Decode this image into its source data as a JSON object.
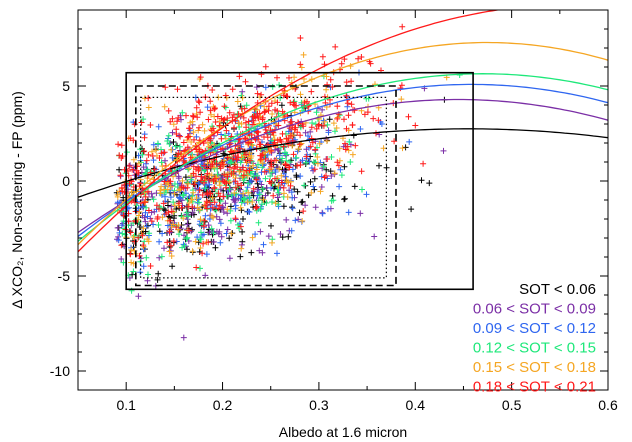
{
  "chart_data": {
    "type": "scatter",
    "title": "",
    "xlabel": "Albedo at 1.6 micron",
    "ylabel": "Δ XCO₂, Non-scattering - FP (ppm)",
    "xlim": [
      0.05,
      0.6
    ],
    "ylim": [
      -11,
      9
    ],
    "xticks": [
      0.1,
      0.2,
      0.3,
      0.4,
      0.5,
      0.6
    ],
    "xtick_labels": [
      "0.1",
      "0.2",
      "0.3",
      "0.4",
      "0.5",
      "0.6"
    ],
    "yticks": [
      -10,
      -5,
      0,
      5
    ],
    "ytick_labels": [
      "-10",
      "-5",
      "0",
      "5"
    ],
    "legend_placement": "bottom-right",
    "series": [
      {
        "name": "SOT < 0.06",
        "color": "#000000",
        "fit": [
          -1.8,
          20,
          -22
        ],
        "cloud": [
          0.205,
          -0.5,
          14,
          1.6
        ]
      },
      {
        "name": "0.06 < SOT < 0.09",
        "color": "#7b2fa6",
        "fit": [
          -4.6,
          40,
          -45
        ],
        "cloud": [
          0.2,
          -0.4,
          15,
          1.8
        ]
      },
      {
        "name": "0.09 < SOT < 0.12",
        "color": "#2f66f0",
        "fit": [
          -5.0,
          44,
          -48
        ],
        "cloud": [
          0.2,
          0.0,
          16,
          1.8
        ]
      },
      {
        "name": "0.12 < SOT < 0.15",
        "color": "#1ee87a",
        "fit": [
          -5.4,
          47,
          -50
        ],
        "cloud": [
          0.2,
          0.2,
          17,
          1.8
        ]
      },
      {
        "name": "0.15 < SOT < 0.18",
        "color": "#f5a623",
        "fit": [
          -6.0,
          56,
          -59
        ],
        "cloud": [
          0.205,
          1.0,
          18,
          1.8
        ]
      },
      {
        "name": "0.18 < SOT < 0.21",
        "color": "#ff1a1a",
        "fit": [
          -6.4,
          56,
          -50
        ],
        "cloud": [
          0.21,
          1.6,
          20,
          1.8
        ]
      }
    ],
    "boxes": [
      {
        "style": "solid",
        "x": [
          0.1,
          0.46
        ],
        "y": [
          -5.7,
          5.7
        ]
      },
      {
        "style": "dashed",
        "x": [
          0.11,
          0.38
        ],
        "y": [
          -5.5,
          5.0
        ]
      },
      {
        "style": "dotted",
        "x": [
          0.115,
          0.37
        ],
        "y": [
          -5.1,
          4.4
        ]
      }
    ]
  }
}
